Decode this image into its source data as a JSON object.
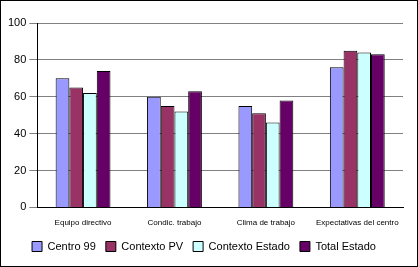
{
  "chart_data": {
    "type": "bar",
    "categories": [
      "Equipo directivo",
      "Condic. trabajo",
      "Clima de trabajo",
      "Expectativas del centro"
    ],
    "series": [
      {
        "name": "Centro 99",
        "color": "#9999ff",
        "values": [
          70,
          60,
          55,
          76
        ]
      },
      {
        "name": "Contexto PV",
        "color": "#993366",
        "values": [
          65,
          55,
          51,
          85
        ]
      },
      {
        "name": "Contexto Estado",
        "color": "#ccffff",
        "values": [
          62,
          52,
          46,
          84
        ]
      },
      {
        "name": "Total Estado",
        "color": "#660066",
        "values": [
          74,
          63,
          58,
          83
        ]
      }
    ],
    "ylim": [
      0,
      100
    ],
    "yticks": [
      0,
      20,
      40,
      60,
      80,
      100
    ],
    "grid": true,
    "legend": "bottom"
  }
}
